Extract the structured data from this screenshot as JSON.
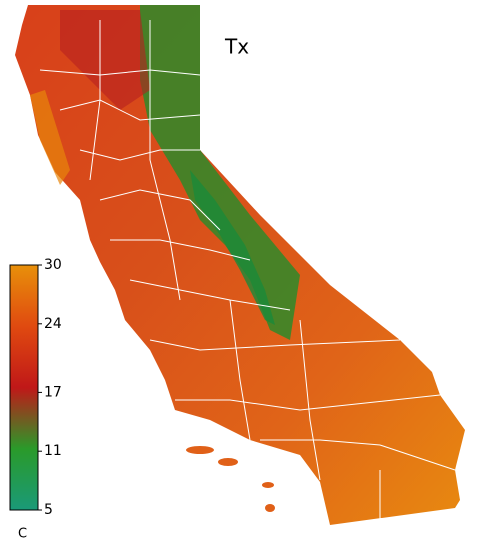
{
  "title": "Tx",
  "colorbar": {
    "unit": "C",
    "range": [
      5,
      30
    ],
    "ticks": [
      5,
      11,
      17,
      24,
      30
    ],
    "colors": [
      "#1a9a78",
      "#2a9a2a",
      "#c01818",
      "#e04a10",
      "#e8900a"
    ]
  }
}
